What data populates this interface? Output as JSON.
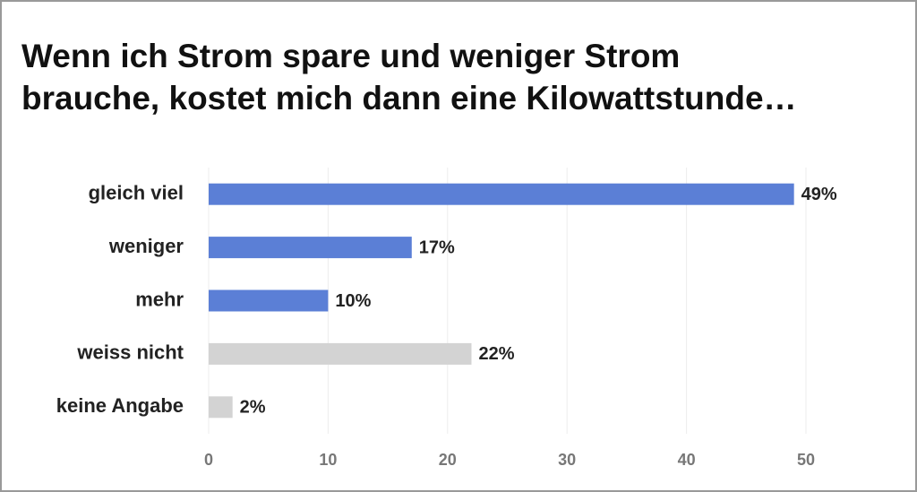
{
  "chart_data": {
    "type": "hbar",
    "title": [
      "Wenn ich Strom spare und weniger Strom",
      "brauche, kostet mich dann eine Kilowattstunde…"
    ],
    "categories": [
      "gleich viel",
      "weniger",
      "mehr",
      "weiss nicht",
      "keine Angabe"
    ],
    "values": [
      49,
      17,
      10,
      22,
      2
    ],
    "value_labels": [
      "49%",
      "17%",
      "10%",
      "22%",
      "2%"
    ],
    "colors": [
      "#5b7fd6",
      "#5b7fd6",
      "#5b7fd6",
      "#d3d3d3",
      "#d3d3d3"
    ],
    "xlim": [
      0,
      50
    ],
    "xticks": [
      0,
      10,
      20,
      30,
      40,
      50
    ],
    "grid": true
  }
}
